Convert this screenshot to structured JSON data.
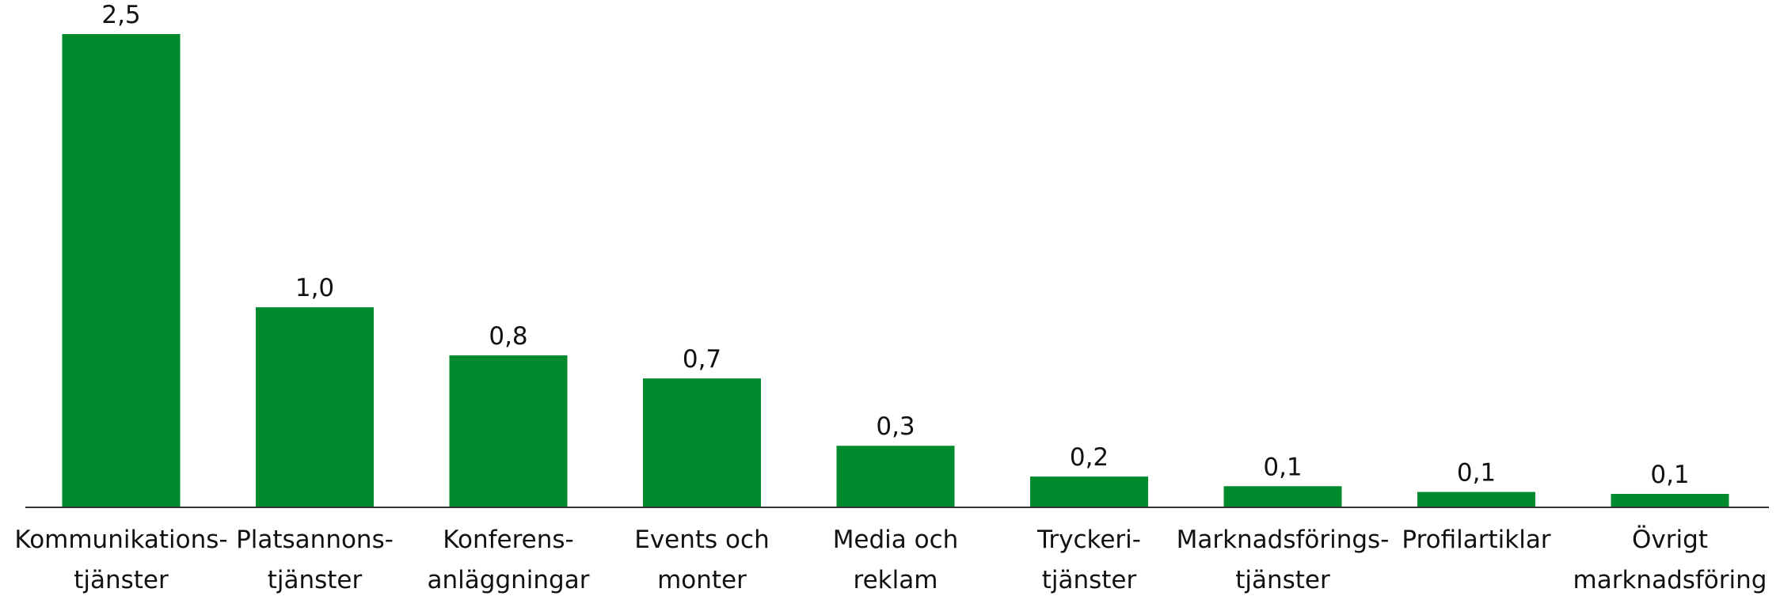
{
  "chart_data": {
    "type": "bar",
    "categories": [
      [
        "Kommunikations-",
        "tjänster"
      ],
      [
        "Platsannons-",
        "tjänster"
      ],
      [
        "Konferens-",
        "anläggningar"
      ],
      [
        "Events och",
        "monter"
      ],
      [
        "Media och",
        "reklam"
      ],
      [
        "Tryckeri-",
        "tjänster"
      ],
      [
        "Marknadsförings-",
        "tjänster"
      ],
      [
        "Profilartiklar"
      ],
      [
        "Övrigt",
        "marknadsföring"
      ]
    ],
    "values": [
      2.46,
      1.04,
      0.79,
      0.67,
      0.32,
      0.16,
      0.11,
      0.08,
      0.07
    ],
    "value_labels": [
      "2,5",
      "1,0",
      "0,8",
      "0,7",
      "0,3",
      "0,2",
      "0,1",
      "0,1",
      "0,1"
    ],
    "color": "#008a2e",
    "ylim": [
      0,
      2.6
    ]
  }
}
